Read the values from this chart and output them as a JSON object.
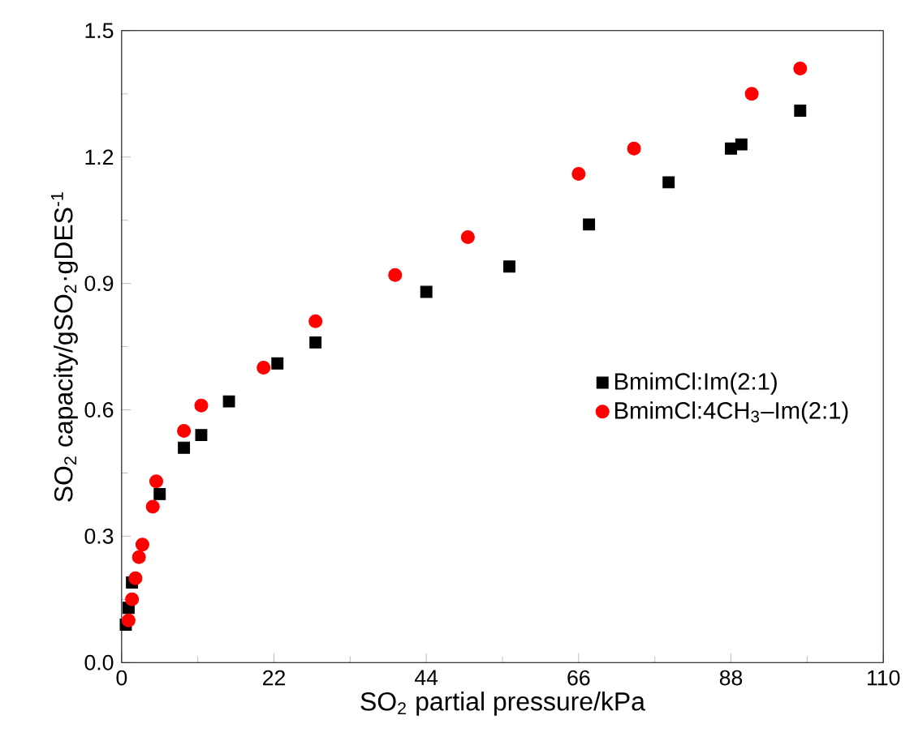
{
  "chart_data": {
    "type": "scatter",
    "xlabel": "SO$_{2}$ partial pressure/kPa",
    "ylabel": "SO$_{2}$ capacity/gSO$_{2}$·gDES$^{-1}$",
    "xlim": [
      0,
      110
    ],
    "ylim": [
      0,
      1.5
    ],
    "xticks": [
      0,
      22,
      44,
      66,
      88,
      110
    ],
    "yticks": [
      {
        "value": 0,
        "label": "0.0"
      },
      0.3,
      0.6,
      0.9,
      1.2,
      1.5
    ],
    "legend": "right",
    "grid": false,
    "series": [
      {
        "name": "BmimCl:Im(2:1)",
        "color": "#000000",
        "marker": "square",
        "x": [
          0.6,
          1,
          1.5,
          5.5,
          9,
          11.5,
          15.5,
          22.5,
          28,
          44,
          56,
          67.5,
          79,
          88,
          89.5,
          98
        ],
        "values": [
          0.09,
          0.13,
          0.19,
          0.4,
          0.51,
          0.54,
          0.62,
          0.71,
          0.76,
          0.88,
          0.94,
          1.04,
          1.14,
          1.22,
          1.23,
          1.31
        ]
      },
      {
        "name": "BmimCl:4CH$_{3}$–Im(2:1)",
        "color": "#ff0000",
        "marker": "circle",
        "x": [
          1,
          1.5,
          2,
          2.5,
          3,
          4.5,
          5,
          9,
          11.5,
          20.5,
          28,
          39.5,
          50,
          66,
          74,
          91,
          98
        ],
        "values": [
          0.1,
          0.15,
          0.2,
          0.25,
          0.28,
          0.37,
          0.43,
          0.55,
          0.61,
          0.7,
          0.81,
          0.92,
          1.01,
          1.16,
          1.22,
          1.35,
          1.41
        ]
      }
    ]
  }
}
